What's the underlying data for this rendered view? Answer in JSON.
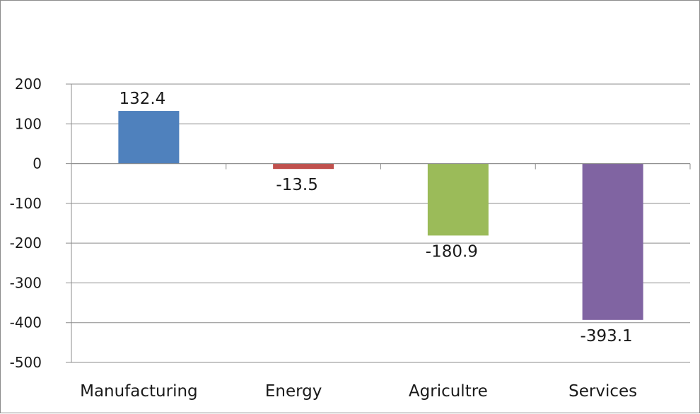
{
  "chart_data": {
    "type": "bar",
    "categories": [
      "Manufacturing",
      "Energy",
      "Agricultre",
      "Services"
    ],
    "values": [
      132.4,
      -13.5,
      -180.9,
      -393.1
    ],
    "data_labels": [
      "132.4",
      "-13.5",
      "-180.9",
      "-393.1"
    ],
    "colors": [
      "#4f81bd",
      "#c0504d",
      "#9bbb59",
      "#8064a2"
    ],
    "ylim": [
      -500,
      200
    ],
    "yticks": [
      200,
      100,
      0,
      -100,
      -200,
      -300,
      -400,
      -500
    ],
    "ytick_labels": [
      "200",
      "100",
      "0",
      "-100",
      "-200",
      "-300",
      "-400",
      "-500"
    ],
    "title": "",
    "xlabel": "",
    "ylabel": "",
    "grid": true,
    "legend": "none"
  }
}
